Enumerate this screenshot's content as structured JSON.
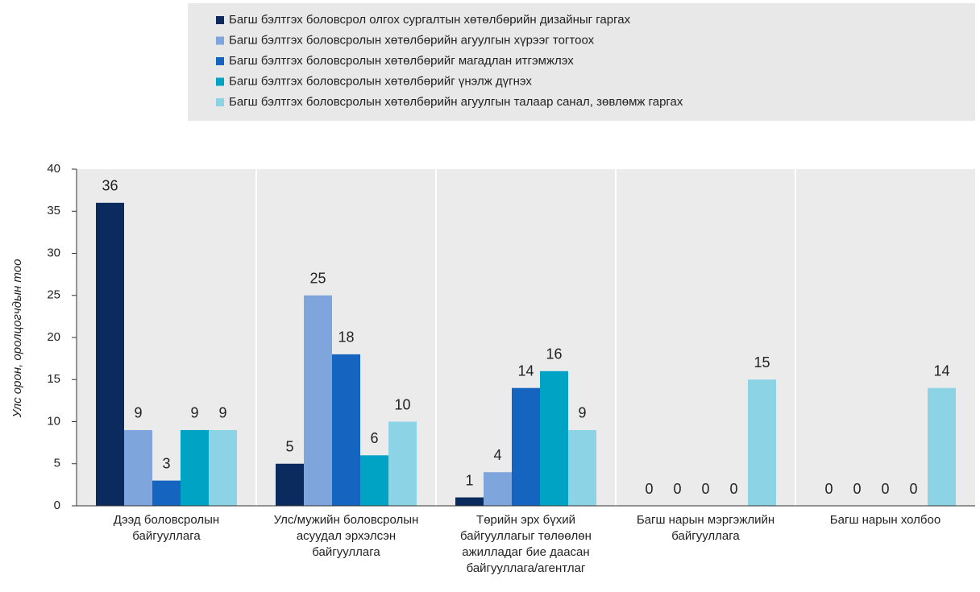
{
  "chart_data": {
    "type": "bar",
    "y_label": "Улс орон, оролцогчдын тоо",
    "categories": [
      "Дээд боловсролын байгууллага",
      "Улс/мужийн боловсролын асуудал эрхэлсэн байгууллага",
      "Төрийн эрх бүхий байгууллагыг төлөөлөн ажилладаг бие даасан байгууллага/агентлаг",
      "Багш нарын мэргэжлийн байгууллага",
      "Багш нарын холбоо"
    ],
    "series": [
      {
        "name": "Багш бэлтгэх  боловсрол олгох сургалтын хөтөлбөрийн дизайныг гаргах",
        "color": "#0b2a5e",
        "values": [
          36,
          5,
          1,
          0,
          0
        ]
      },
      {
        "name": "Багш бэлтгэх боловсролын хөтөлбөрийн агуулгын хүрээг тогтоох",
        "color": "#7fa6dc",
        "values": [
          9,
          25,
          4,
          0,
          0
        ]
      },
      {
        "name": "Багш бэлтгэх боловсролын хөтөлбөрийг магадлан итгэмжлэх",
        "color": "#1565c0",
        "values": [
          3,
          18,
          14,
          0,
          0
        ]
      },
      {
        "name": "Багш бэлтгэх боловсролын хөтөлбөрийг үнэлж дүгнэх",
        "color": "#00a3c4",
        "values": [
          9,
          6,
          16,
          0,
          0
        ]
      },
      {
        "name": "Багш бэлтгэх боловсролын хөтөлбөрийн агуулгын талаар санал, зөвлөмж гаргах",
        "color": "#8dd3e6",
        "values": [
          9,
          10,
          9,
          15,
          14
        ]
      }
    ],
    "ylim": [
      0,
      40
    ],
    "yticks": [
      0,
      5,
      10,
      15,
      20,
      25,
      30,
      35,
      40
    ],
    "grid": false,
    "legend": "top"
  }
}
